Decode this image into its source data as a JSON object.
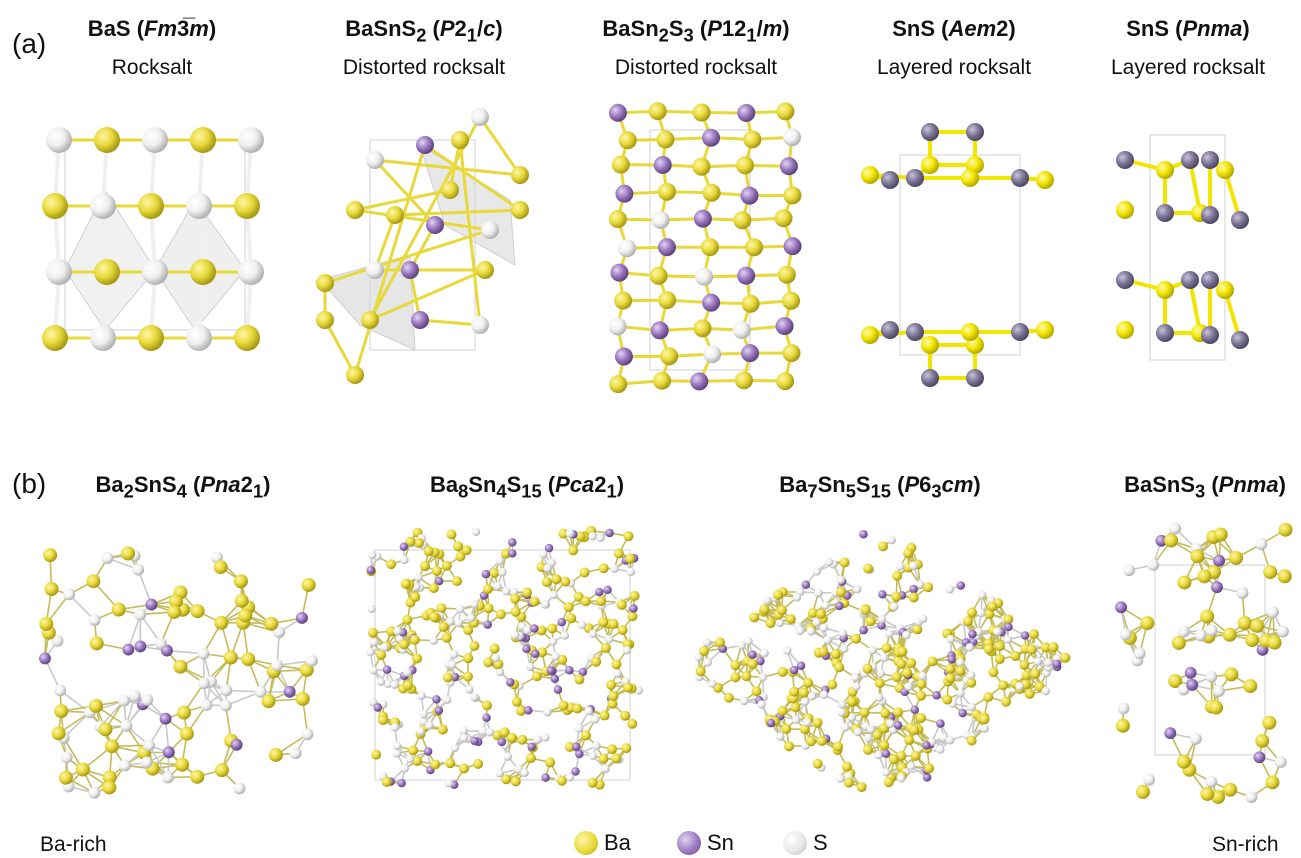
{
  "panels": {
    "a": {
      "label": "(a)",
      "structures": [
        {
          "formula_html": "BaS (<i>Fm</i>3&#773;<i>m</i>)",
          "subtitle": "Rocksalt"
        },
        {
          "formula_html": "BaSnS<sub>2</sub> (<i>P</i>2<sub>1</sub>/<i>c</i>)",
          "subtitle": "Distorted rocksalt"
        },
        {
          "formula_html": "BaSn<sub>2</sub>S<sub>3</sub> (<i>P</i>12<sub>1</sub>/<i>m</i>)",
          "subtitle": "Distorted rocksalt"
        },
        {
          "formula_html": "SnS (<i>Aem</i>2)",
          "subtitle": "Layered rocksalt"
        },
        {
          "formula_html": "SnS (<i>Pnma</i>)",
          "subtitle": "Layered rocksalt"
        }
      ]
    },
    "b": {
      "label": "(b)",
      "structures": [
        {
          "formula_html": "Ba<sub>2</sub>SnS<sub>4</sub> (<i>Pna</i>2<sub>1</sub>)"
        },
        {
          "formula_html": "Ba<sub>8</sub>Sn<sub>4</sub>S<sub>15</sub> (<i>Pca</i>2<sub>1</sub>)"
        },
        {
          "formula_html": "Ba<sub>7</sub>Sn<sub>5</sub>S<sub>15</sub> (<i>P</i>6<sub>3</sub><i>cm</i>)"
        },
        {
          "formula_html": "BaSnS<sub>3</sub> (<i>Pnma</i>)"
        }
      ]
    }
  },
  "legend": {
    "items": [
      {
        "label": "Ba",
        "color": "#e8d93a"
      },
      {
        "label": "Sn",
        "color": "#9b78c0"
      },
      {
        "label": "S",
        "color": "#e6e6e6"
      }
    ]
  },
  "axis_labels": {
    "left": "Ba-rich",
    "right": "Sn-rich"
  },
  "colors": {
    "ba": "#e8d93a",
    "sn": "#9b78c0",
    "s": "#f0f0f0",
    "bond": "#c9c9c9",
    "polyhedron": "#d8d8d8",
    "sn_alt": "#7d7696",
    "s_bright": "#f2e500"
  }
}
